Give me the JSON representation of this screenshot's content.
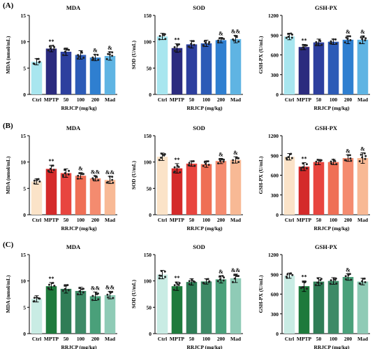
{
  "panels": [
    {
      "label": "(A)"
    },
    {
      "label": "(B)"
    },
    {
      "label": "(C)"
    }
  ],
  "chart_data": [
    {
      "type": "bar",
      "row": 0,
      "title": "MDA",
      "ylabel": "MDA (nmol/mL)",
      "xlabel": "RRJCP (mg/kg)",
      "categories": [
        "Ctrl",
        "MPTP",
        "50",
        "100",
        "200",
        "Mad"
      ],
      "yticks": [
        "0",
        "5",
        "10",
        "15"
      ],
      "ylim": [
        0,
        15
      ],
      "values": [
        6.2,
        8.7,
        8.1,
        7.5,
        7.0,
        7.3
      ],
      "errors": [
        0.6,
        0.6,
        0.7,
        0.8,
        0.6,
        0.8
      ],
      "annotations": [
        "",
        "**",
        "",
        "",
        "&",
        "&"
      ],
      "colors": [
        "#a8e6ef",
        "#2b2b7e",
        "#2d3f9e",
        "#2c5bb7",
        "#2f7fd0",
        "#5fb4e3"
      ]
    },
    {
      "type": "bar",
      "row": 0,
      "title": "SOD",
      "ylabel": "SOD (U/mL)",
      "xlabel": "RRJCP (mg/kg)",
      "categories": [
        "Ctrl",
        "MPTP",
        "50",
        "100",
        "200",
        "Mad"
      ],
      "yticks": [
        "0",
        "50",
        "100",
        "150"
      ],
      "ylim": [
        0,
        150
      ],
      "values": [
        110,
        88,
        95,
        97,
        103,
        105
      ],
      "errors": [
        6,
        8,
        7,
        6,
        5,
        7
      ],
      "annotations": [
        "",
        "**",
        "",
        "",
        "&",
        "&&"
      ],
      "colors": [
        "#a8e6ef",
        "#2b2b7e",
        "#2d3f9e",
        "#2c5bb7",
        "#2f7fd0",
        "#5fb4e3"
      ]
    },
    {
      "type": "bar",
      "row": 0,
      "title": "GSH-PX",
      "ylabel": "GSH-PX (U/mL)",
      "xlabel": "RRJCP (mg/kg)",
      "categories": [
        "Ctrl",
        "MPTP",
        "50",
        "100",
        "200",
        "Mad"
      ],
      "yticks": [
        "0",
        "300",
        "600",
        "900",
        "1200"
      ],
      "ylim": [
        0,
        1200
      ],
      "values": [
        880,
        720,
        790,
        800,
        830,
        830
      ],
      "errors": [
        50,
        40,
        50,
        40,
        60,
        60
      ],
      "annotations": [
        "",
        "**",
        "",
        "",
        "&",
        "&"
      ],
      "colors": [
        "#a8e6ef",
        "#2b2b7e",
        "#2d3f9e",
        "#2c5bb7",
        "#2f7fd0",
        "#5fb4e3"
      ]
    },
    {
      "type": "bar",
      "row": 1,
      "title": "MDA",
      "ylabel": "MDA (nmol/mL)",
      "xlabel": "RRJCP (mg/kg)",
      "categories": [
        "Ctrl",
        "MPTP",
        "50",
        "100",
        "200",
        "Mad"
      ],
      "yticks": [
        "0",
        "5",
        "10",
        "15"
      ],
      "ylim": [
        0,
        15
      ],
      "values": [
        6.3,
        8.7,
        7.9,
        7.4,
        6.9,
        6.6
      ],
      "errors": [
        0.5,
        0.7,
        0.8,
        0.6,
        0.5,
        0.7
      ],
      "annotations": [
        "",
        "**",
        "",
        "&",
        "&&",
        "&&"
      ],
      "colors": [
        "#fbe3c8",
        "#d42a2a",
        "#e8453f",
        "#ef6f55",
        "#f48b6f",
        "#f8b995"
      ]
    },
    {
      "type": "bar",
      "row": 1,
      "title": "SOD",
      "ylabel": "SOD (U/mL)",
      "xlabel": "RRJCP (mg/kg)",
      "categories": [
        "Ctrl",
        "MPTP",
        "50",
        "100",
        "200",
        "Mad"
      ],
      "yticks": [
        "0",
        "50",
        "100",
        "150"
      ],
      "ylim": [
        0,
        150
      ],
      "values": [
        110,
        88,
        97,
        96,
        102,
        104
      ],
      "errors": [
        7,
        9,
        5,
        6,
        5,
        6
      ],
      "annotations": [
        "",
        "**",
        "",
        "",
        "&",
        "&"
      ],
      "colors": [
        "#fbe3c8",
        "#d42a2a",
        "#e8453f",
        "#ef6f55",
        "#f48b6f",
        "#f8b995"
      ]
    },
    {
      "type": "bar",
      "row": 1,
      "title": "GSH-PX",
      "ylabel": "GSH-PX (U/mL)",
      "xlabel": "RRJCP (mg/kg)",
      "categories": [
        "Ctrl",
        "MPTP",
        "50",
        "100",
        "200",
        "Mad"
      ],
      "yticks": [
        "0",
        "300",
        "600",
        "900",
        "1200"
      ],
      "ylim": [
        0,
        1200
      ],
      "values": [
        880,
        730,
        800,
        800,
        860,
        860
      ],
      "errors": [
        50,
        60,
        40,
        40,
        50,
        80
      ],
      "annotations": [
        "",
        "**",
        "",
        "",
        "&",
        "&"
      ],
      "colors": [
        "#fbe3c8",
        "#d42a2a",
        "#e8453f",
        "#ef6f55",
        "#f48b6f",
        "#f8b995"
      ]
    },
    {
      "type": "bar",
      "row": 2,
      "title": "MDA",
      "ylabel": "MDA (nmol/mL)",
      "xlabel": "RRJCP (mg/kg)",
      "categories": [
        "Ctrl",
        "MPTP",
        "50",
        "100",
        "200",
        "Mad"
      ],
      "yticks": [
        "0",
        "5",
        "10",
        "15"
      ],
      "ylim": [
        0,
        15
      ],
      "values": [
        6.6,
        9.0,
        8.5,
        8.1,
        7.1,
        7.3
      ],
      "errors": [
        0.6,
        0.7,
        0.8,
        0.7,
        0.8,
        0.7
      ],
      "annotations": [
        "",
        "**",
        "",
        "",
        "&&",
        "&&"
      ],
      "colors": [
        "#c9ece4",
        "#1e7a3c",
        "#2f7d56",
        "#3d8a66",
        "#4aa07a",
        "#8fcbb6"
      ]
    },
    {
      "type": "bar",
      "row": 2,
      "title": "SOD",
      "ylabel": "SOD (U/mL)",
      "xlabel": "RRJCP (mg/kg)",
      "categories": [
        "Ctrl",
        "MPTP",
        "50",
        "100",
        "200",
        "Mad"
      ],
      "yticks": [
        "0",
        "50",
        "100",
        "150"
      ],
      "ylim": [
        0,
        150
      ],
      "values": [
        112,
        90,
        98,
        99,
        103,
        105
      ],
      "errors": [
        8,
        8,
        6,
        5,
        7,
        8
      ],
      "annotations": [
        "",
        "**",
        "",
        "",
        "&",
        "&&"
      ],
      "colors": [
        "#c9ece4",
        "#1e7a3c",
        "#2f7d56",
        "#3d8a66",
        "#4aa07a",
        "#8fcbb6"
      ]
    },
    {
      "type": "bar",
      "row": 2,
      "title": "GSH-PX",
      "ylabel": "GSH-PX (U/mL)",
      "xlabel": "RRJCP (mg/kg)",
      "categories": [
        "Ctrl",
        "MPTP",
        "50",
        "100",
        "200",
        "Mad"
      ],
      "yticks": [
        "0",
        "300",
        "600",
        "900",
        "1200"
      ],
      "ylim": [
        0,
        1200
      ],
      "values": [
        880,
        720,
        790,
        800,
        860,
        790
      ],
      "errors": [
        40,
        80,
        60,
        50,
        50,
        50
      ],
      "annotations": [
        "",
        "**",
        "",
        "",
        "&",
        ""
      ],
      "colors": [
        "#c9ece4",
        "#1e7a3c",
        "#2f7d56",
        "#3d8a66",
        "#4aa07a",
        "#8fcbb6"
      ]
    }
  ]
}
